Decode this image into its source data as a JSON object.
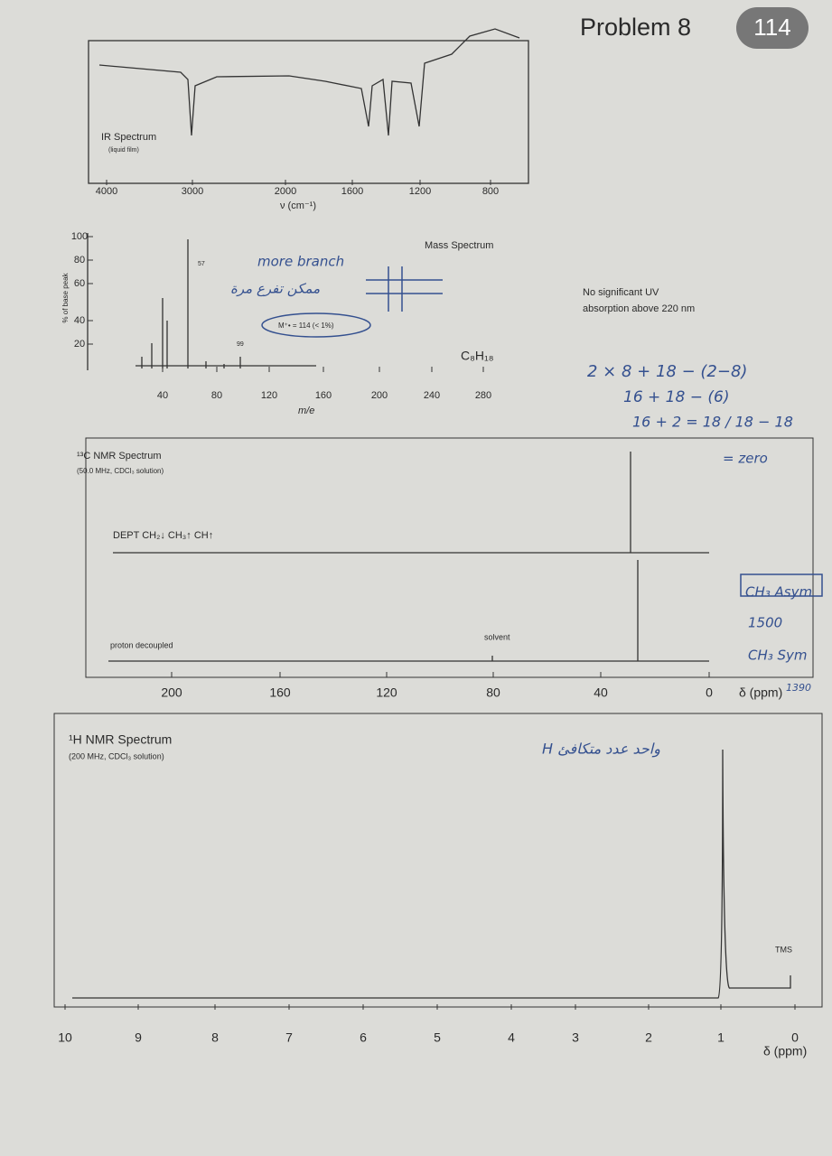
{
  "header": {
    "title": "Problem 8",
    "badge": "114"
  },
  "ir": {
    "title": "IR Spectrum",
    "subtitle": "(liquid film)",
    "x_ticks": [
      "4000",
      "3000",
      "2000",
      "1600",
      "1200",
      "800"
    ],
    "x_label": "ν (cm⁻¹)"
  },
  "mass": {
    "title": "Mass Spectrum",
    "y_label": "% of base peak",
    "y_ticks": [
      "100",
      "80",
      "60",
      "40",
      "20"
    ],
    "x_ticks": [
      "40",
      "80",
      "120",
      "160",
      "200",
      "240",
      "280"
    ],
    "x_label": "m/e",
    "peak_labels": [
      "57",
      "99"
    ],
    "molecular_ion": "M⁺• = 114 (< 1%)",
    "formula": "C₈H₁₈"
  },
  "uv": {
    "note_line1": "No significant UV",
    "note_line2": "absorption above 220 nm"
  },
  "c13": {
    "title": "¹³C NMR Spectrum",
    "subtitle": "(50.0 MHz, CDCl₃ solution)",
    "dept": "DEPT  CH₂↓  CH₃↑  CH↑",
    "decoupled": "proton decoupled",
    "solvent": "solvent",
    "x_ticks": [
      "200",
      "160",
      "120",
      "80",
      "40",
      "0"
    ],
    "x_label": "δ (ppm)"
  },
  "h1": {
    "title": "¹H NMR Spectrum",
    "subtitle": "(200 MHz, CDCl₃ solution)",
    "tms": "TMS",
    "x_ticks": [
      "10",
      "9",
      "8",
      "7",
      "6",
      "5",
      "4",
      "3",
      "2",
      "1",
      "0"
    ],
    "x_label": "δ (ppm)"
  },
  "handwriting": {
    "branch_en": "more branch",
    "branch_ar": "ممكن تفرع مرة",
    "calc1": "2 × 8 + 18 − (2−8)",
    "calc2": "16 + 18 − (6)",
    "calc3": "16 + 2 = 18 / 18 − 18",
    "calc4": "= zero",
    "asym": "CH₃ Asym",
    "asym_value": "1500",
    "sym": "CH₃ Sym",
    "sym_value": "1390",
    "h_note": "H واحد عدد متكافئ"
  }
}
